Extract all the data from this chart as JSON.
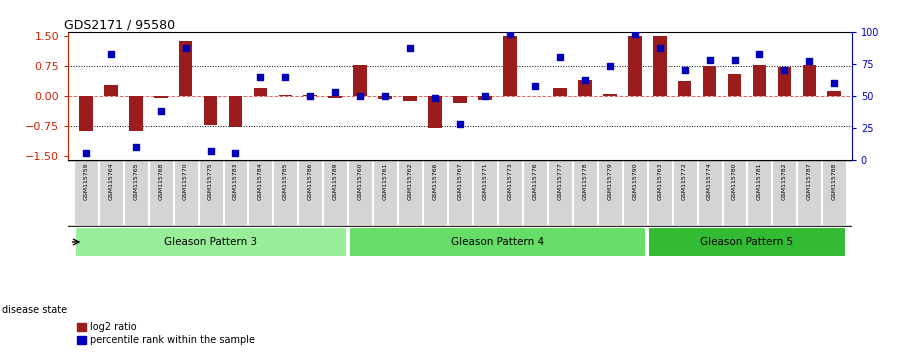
{
  "title": "GDS2171 / 95580",
  "samples": [
    "GSM115759",
    "GSM115764",
    "GSM115765",
    "GSM115768",
    "GSM115770",
    "GSM115775",
    "GSM115783",
    "GSM115784",
    "GSM115785",
    "GSM115786",
    "GSM115789",
    "GSM115760",
    "GSM115761",
    "GSM115762",
    "GSM115766",
    "GSM115767",
    "GSM115771",
    "GSM115773",
    "GSM115776",
    "GSM115777",
    "GSM115778",
    "GSM115779",
    "GSM115790",
    "GSM115763",
    "GSM115772",
    "GSM115774",
    "GSM115780",
    "GSM115781",
    "GSM115782",
    "GSM115787",
    "GSM115788"
  ],
  "log2_ratio": [
    -0.88,
    0.27,
    -0.88,
    -0.05,
    1.38,
    -0.72,
    -0.78,
    0.2,
    0.03,
    0.02,
    -0.05,
    0.78,
    -0.08,
    -0.13,
    -0.8,
    -0.18,
    -0.1,
    1.5,
    0.0,
    0.2,
    0.4,
    0.05,
    1.5,
    1.5,
    0.38,
    0.75,
    0.55,
    0.78,
    0.72,
    0.78,
    0.12
  ],
  "percentile": [
    5,
    83,
    10,
    38,
    87,
    7,
    5,
    65,
    65,
    50,
    53,
    50,
    50,
    87,
    48,
    28,
    50,
    98,
    58,
    80,
    62,
    73,
    98,
    87,
    70,
    78,
    78,
    83,
    70,
    77,
    60
  ],
  "groups": [
    {
      "label": "Gleason Pattern 3",
      "start": 0,
      "end": 11,
      "color": "#99EE99"
    },
    {
      "label": "Gleason Pattern 4",
      "start": 11,
      "end": 23,
      "color": "#66DD66"
    },
    {
      "label": "Gleason Pattern 5",
      "start": 23,
      "end": 31,
      "color": "#33BB33"
    }
  ],
  "bar_color": "#9B1C1C",
  "dot_color": "#0000BB",
  "ylim_left": [
    -1.6,
    1.6
  ],
  "ylim_right": [
    0,
    100
  ],
  "yticks_left": [
    -1.5,
    -0.75,
    0,
    0.75,
    1.5
  ],
  "yticks_right": [
    0,
    25,
    50,
    75,
    100
  ],
  "hlines": [
    -0.75,
    0,
    0.75
  ],
  "legend_labels": [
    "log2 ratio",
    "percentile rank within the sample"
  ],
  "bg_color": "#FFFFFF",
  "axis_color_left": "#CC2200",
  "axis_color_right": "#0000CC",
  "tick_bg_color": "#D4D4D4"
}
